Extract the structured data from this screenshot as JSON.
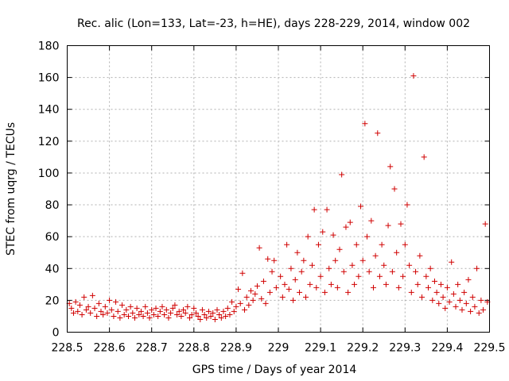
{
  "chart_data": {
    "type": "scatter",
    "title": "Rec. alic (Lon=133, Lat=-23, h=HE), days 228-229, 2014, window 002",
    "xlabel": "GPS time / Days of year 2014",
    "ylabel": "STEC from uqrg / TECUs",
    "xlim": [
      228.5,
      229.5
    ],
    "ylim": [
      0,
      180
    ],
    "xticks": [
      228.5,
      228.6,
      228.7,
      228.8,
      228.9,
      229,
      229.1,
      229.2,
      229.3,
      229.4,
      229.5
    ],
    "xtick_labels": [
      "228.5",
      "228.6",
      "228.7",
      "228.8",
      "228.9",
      "229",
      "229.1",
      "229.2",
      "229.3",
      "229.4",
      "229.5"
    ],
    "yticks": [
      0,
      20,
      40,
      60,
      80,
      100,
      120,
      140,
      160,
      180
    ],
    "ytick_labels": [
      "0",
      "20",
      "40",
      "60",
      "80",
      "100",
      "120",
      "140",
      "160",
      "180"
    ],
    "grid": true,
    "marker": "+",
    "marker_color": "#d00000",
    "series": [
      {
        "name": "STEC",
        "points": [
          [
            228.505,
            18
          ],
          [
            228.51,
            15
          ],
          [
            228.515,
            12
          ],
          [
            228.52,
            19
          ],
          [
            228.525,
            13
          ],
          [
            228.53,
            17
          ],
          [
            228.535,
            11
          ],
          [
            228.54,
            22
          ],
          [
            228.545,
            14
          ],
          [
            228.55,
            16
          ],
          [
            228.555,
            12
          ],
          [
            228.56,
            23
          ],
          [
            228.565,
            15
          ],
          [
            228.57,
            10
          ],
          [
            228.575,
            18
          ],
          [
            228.58,
            13
          ],
          [
            228.585,
            11
          ],
          [
            228.59,
            16
          ],
          [
            228.595,
            12
          ],
          [
            228.6,
            20
          ],
          [
            228.605,
            14
          ],
          [
            228.61,
            10
          ],
          [
            228.615,
            19
          ],
          [
            228.62,
            13
          ],
          [
            228.625,
            9
          ],
          [
            228.63,
            17
          ],
          [
            228.635,
            11
          ],
          [
            228.64,
            14
          ],
          [
            228.645,
            10
          ],
          [
            228.65,
            16
          ],
          [
            228.655,
            12
          ],
          [
            228.66,
            9
          ],
          [
            228.665,
            15
          ],
          [
            228.67,
            11
          ],
          [
            228.675,
            13
          ],
          [
            228.68,
            10
          ],
          [
            228.685,
            16
          ],
          [
            228.69,
            12
          ],
          [
            228.695,
            9
          ],
          [
            228.7,
            14
          ],
          [
            228.705,
            11
          ],
          [
            228.71,
            15
          ],
          [
            228.715,
            10
          ],
          [
            228.72,
            13
          ],
          [
            228.725,
            16
          ],
          [
            228.73,
            11
          ],
          [
            228.735,
            14
          ],
          [
            228.74,
            9
          ],
          [
            228.745,
            12
          ],
          [
            228.75,
            15
          ],
          [
            228.755,
            17
          ],
          [
            228.76,
            11
          ],
          [
            228.765,
            13
          ],
          [
            228.77,
            10
          ],
          [
            228.775,
            14
          ],
          [
            228.78,
            12
          ],
          [
            228.785,
            16
          ],
          [
            228.79,
            9
          ],
          [
            228.795,
            11
          ],
          [
            228.8,
            15
          ],
          [
            228.805,
            12
          ],
          [
            228.81,
            10
          ],
          [
            228.815,
            8
          ],
          [
            228.82,
            14
          ],
          [
            228.825,
            11
          ],
          [
            228.83,
            9
          ],
          [
            228.835,
            13
          ],
          [
            228.84,
            10
          ],
          [
            228.845,
            12
          ],
          [
            228.85,
            8
          ],
          [
            228.855,
            14
          ],
          [
            228.86,
            11
          ],
          [
            228.865,
            9
          ],
          [
            228.87,
            13
          ],
          [
            228.875,
            10
          ],
          [
            228.88,
            15
          ],
          [
            228.885,
            11
          ],
          [
            228.89,
            19
          ],
          [
            228.895,
            13
          ],
          [
            228.9,
            16
          ],
          [
            228.905,
            27
          ],
          [
            228.91,
            18
          ],
          [
            228.915,
            37
          ],
          [
            228.92,
            14
          ],
          [
            228.925,
            22
          ],
          [
            228.93,
            17
          ],
          [
            228.935,
            26
          ],
          [
            228.94,
            20
          ],
          [
            228.945,
            24
          ],
          [
            228.95,
            29
          ],
          [
            228.955,
            53
          ],
          [
            228.96,
            21
          ],
          [
            228.965,
            32
          ],
          [
            228.97,
            18
          ],
          [
            228.975,
            46
          ],
          [
            228.98,
            25
          ],
          [
            228.985,
            38
          ],
          [
            228.99,
            45
          ],
          [
            228.995,
            28
          ],
          [
            229.005,
            35
          ],
          [
            229.01,
            22
          ],
          [
            229.015,
            30
          ],
          [
            229.02,
            55
          ],
          [
            229.025,
            27
          ],
          [
            229.03,
            40
          ],
          [
            229.035,
            20
          ],
          [
            229.04,
            33
          ],
          [
            229.045,
            50
          ],
          [
            229.05,
            25
          ],
          [
            229.055,
            38
          ],
          [
            229.06,
            45
          ],
          [
            229.065,
            22
          ],
          [
            229.07,
            60
          ],
          [
            229.075,
            30
          ],
          [
            229.08,
            42
          ],
          [
            229.085,
            77
          ],
          [
            229.09,
            28
          ],
          [
            229.095,
            55
          ],
          [
            229.1,
            35
          ],
          [
            229.105,
            63
          ],
          [
            229.11,
            25
          ],
          [
            229.115,
            77
          ],
          [
            229.12,
            40
          ],
          [
            229.125,
            30
          ],
          [
            229.13,
            61
          ],
          [
            229.135,
            45
          ],
          [
            229.14,
            28
          ],
          [
            229.145,
            52
          ],
          [
            229.15,
            99
          ],
          [
            229.155,
            38
          ],
          [
            229.16,
            66
          ],
          [
            229.165,
            25
          ],
          [
            229.17,
            69
          ],
          [
            229.175,
            42
          ],
          [
            229.18,
            30
          ],
          [
            229.185,
            55
          ],
          [
            229.19,
            35
          ],
          [
            229.195,
            79
          ],
          [
            229.2,
            45
          ],
          [
            229.205,
            131
          ],
          [
            229.21,
            60
          ],
          [
            229.215,
            38
          ],
          [
            229.22,
            70
          ],
          [
            229.225,
            28
          ],
          [
            229.23,
            48
          ],
          [
            229.235,
            125
          ],
          [
            229.24,
            35
          ],
          [
            229.245,
            55
          ],
          [
            229.25,
            42
          ],
          [
            229.255,
            30
          ],
          [
            229.26,
            67
          ],
          [
            229.265,
            104
          ],
          [
            229.27,
            38
          ],
          [
            229.275,
            90
          ],
          [
            229.28,
            50
          ],
          [
            229.285,
            28
          ],
          [
            229.29,
            68
          ],
          [
            229.295,
            35
          ],
          [
            229.3,
            55
          ],
          [
            229.305,
            80
          ],
          [
            229.31,
            42
          ],
          [
            229.315,
            25
          ],
          [
            229.32,
            161
          ],
          [
            229.325,
            38
          ],
          [
            229.33,
            30
          ],
          [
            229.335,
            48
          ],
          [
            229.34,
            22
          ],
          [
            229.345,
            110
          ],
          [
            229.35,
            35
          ],
          [
            229.355,
            28
          ],
          [
            229.36,
            40
          ],
          [
            229.365,
            20
          ],
          [
            229.37,
            32
          ],
          [
            229.375,
            25
          ],
          [
            229.38,
            18
          ],
          [
            229.385,
            30
          ],
          [
            229.39,
            22
          ],
          [
            229.395,
            15
          ],
          [
            229.4,
            28
          ],
          [
            229.405,
            19
          ],
          [
            229.41,
            44
          ],
          [
            229.415,
            24
          ],
          [
            229.42,
            16
          ],
          [
            229.425,
            30
          ],
          [
            229.43,
            20
          ],
          [
            229.435,
            14
          ],
          [
            229.44,
            25
          ],
          [
            229.445,
            18
          ],
          [
            229.45,
            33
          ],
          [
            229.455,
            13
          ],
          [
            229.46,
            22
          ],
          [
            229.465,
            16
          ],
          [
            229.47,
            40
          ],
          [
            229.475,
            12
          ],
          [
            229.48,
            20
          ],
          [
            229.485,
            14
          ],
          [
            229.49,
            68
          ],
          [
            229.495,
            19
          ]
        ]
      }
    ]
  }
}
